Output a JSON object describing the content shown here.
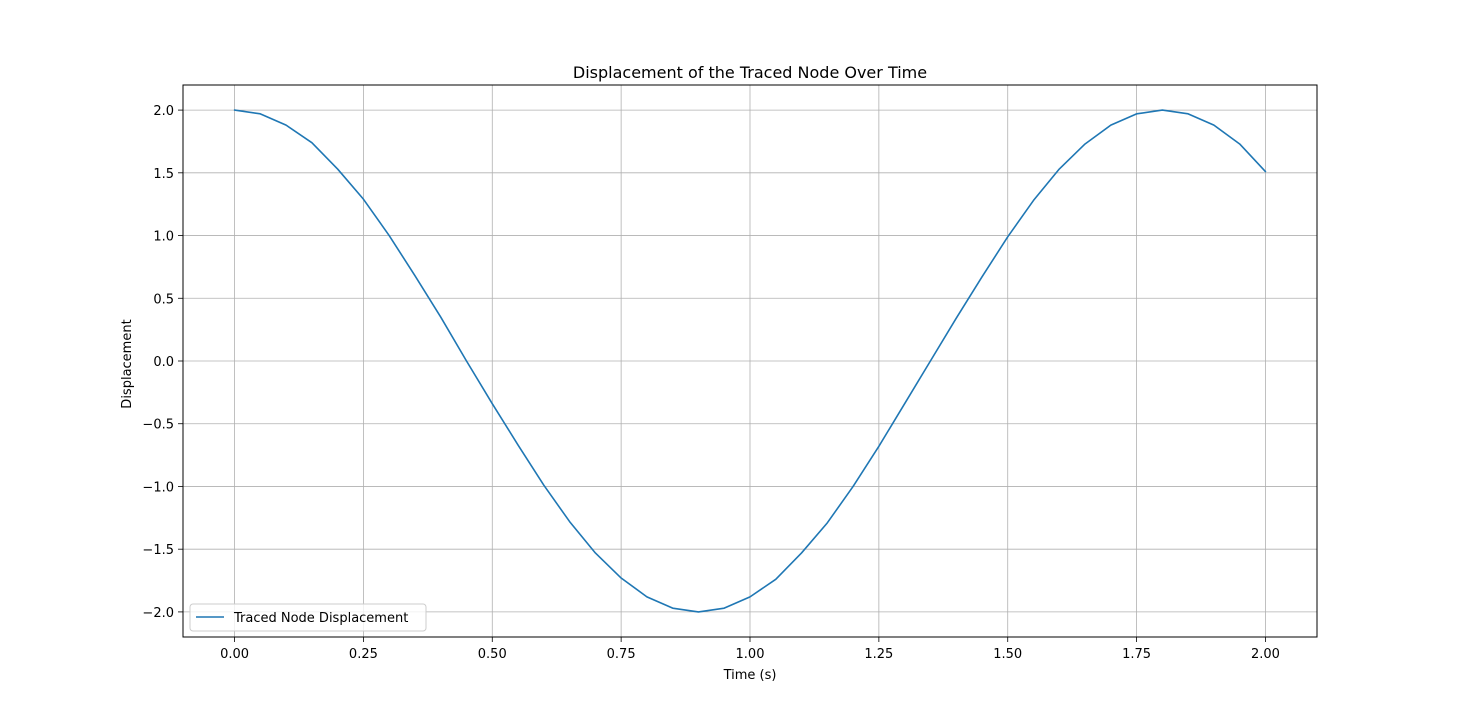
{
  "chart_data": {
    "type": "line",
    "title": "Displacement of the Traced Node Over Time",
    "xlabel": "Time (s)",
    "ylabel": "Displacement",
    "xlim": [
      -0.1,
      2.1
    ],
    "ylim": [
      -2.2,
      2.2
    ],
    "x_ticks": [
      0.0,
      0.25,
      0.5,
      0.75,
      1.0,
      1.25,
      1.5,
      1.75,
      2.0
    ],
    "x_tick_labels": [
      "0.00",
      "0.25",
      "0.50",
      "0.75",
      "1.00",
      "1.25",
      "1.50",
      "1.75",
      "2.00"
    ],
    "y_ticks": [
      2.0,
      1.5,
      1.0,
      0.5,
      0.0,
      -0.5,
      -1.0,
      -1.5,
      -2.0
    ],
    "y_tick_labels": [
      "2.0",
      "1.5",
      "1.0",
      "0.5",
      "0.0",
      "−0.5",
      "−1.0",
      "−1.5",
      "−2.0"
    ],
    "grid": true,
    "legend_position": "lower-left",
    "series": [
      {
        "name": "Traced Node Displacement",
        "color": "#1f77b4",
        "x": [
          0.0,
          0.05,
          0.1,
          0.15,
          0.2,
          0.25,
          0.3,
          0.35,
          0.4,
          0.45,
          0.5,
          0.55,
          0.6,
          0.65,
          0.7,
          0.75,
          0.8,
          0.85,
          0.9,
          0.95,
          1.0,
          1.05,
          1.1,
          1.15,
          1.2,
          1.25,
          1.3,
          1.35,
          1.4,
          1.45,
          1.5,
          1.55,
          1.6,
          1.65,
          1.7,
          1.75,
          1.8,
          1.85,
          1.9,
          1.95,
          2.0
        ],
        "y": [
          2.0,
          1.97,
          1.88,
          1.74,
          1.53,
          1.29,
          1.0,
          0.68,
          0.35,
          0.0,
          -0.34,
          -0.67,
          -0.99,
          -1.28,
          -1.53,
          -1.73,
          -1.88,
          -1.97,
          -2.0,
          -1.97,
          -1.88,
          -1.74,
          -1.53,
          -1.29,
          -1.0,
          -0.68,
          -0.34,
          0.0,
          0.34,
          0.67,
          0.99,
          1.28,
          1.53,
          1.73,
          1.88,
          1.97,
          2.0,
          1.97,
          1.88,
          1.73,
          1.51
        ]
      }
    ]
  }
}
